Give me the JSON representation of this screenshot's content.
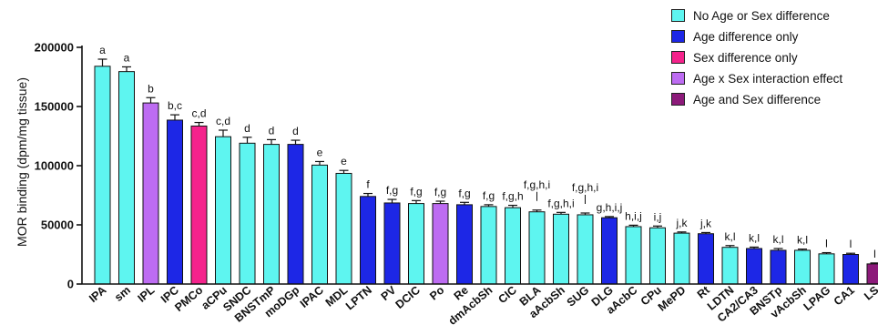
{
  "colors": {
    "none": "#5ef5f0",
    "age": "#1d27e6",
    "sex": "#f5238c",
    "interaction": "#bd6cf2",
    "both": "#8c1a7a"
  },
  "legend": [
    {
      "label": "No Age or Sex difference",
      "group": "none"
    },
    {
      "label": "Age difference only",
      "group": "age"
    },
    {
      "label": "Sex difference only",
      "group": "sex"
    },
    {
      "label": "Age x Sex interaction effect",
      "group": "interaction"
    },
    {
      "label": "Age and Sex difference",
      "group": "both"
    }
  ],
  "chart_data": {
    "type": "bar",
    "ylabel": "MOR binding (dpm/mg tissue)",
    "xlabel": "",
    "ylim": [
      0,
      200000
    ],
    "yticks": [
      0,
      50000,
      100000,
      150000,
      200000
    ],
    "ytick_labels": [
      "0",
      "50000",
      "100000",
      "150000",
      "200000"
    ],
    "grid": false,
    "legend_position": "top-right",
    "categories": [
      "IPA",
      "sm",
      "IPL",
      "IPC",
      "PMCo",
      "aCPu",
      "SNDC",
      "BNSTmP",
      "moDGp",
      "IPAC",
      "MDL",
      "LPTN",
      "PV",
      "DCIC",
      "Po",
      "Re",
      "dmAcbSh",
      "CIC",
      "BLA",
      "aAcbSh",
      "SUG",
      "DLG",
      "aAcbC",
      "CPu",
      "MePD",
      "Rt",
      "LDTN",
      "CA2/CA3",
      "BNSTp",
      "vAcbSh",
      "LPAG",
      "CA1",
      "LS"
    ],
    "values": [
      184000,
      179500,
      153000,
      138500,
      133500,
      124500,
      119000,
      118000,
      118000,
      100500,
      93500,
      74000,
      68500,
      68000,
      68000,
      67000,
      65500,
      64500,
      61000,
      59000,
      58500,
      56000,
      48500,
      47500,
      43000,
      42500,
      31000,
      30000,
      28500,
      28500,
      25500,
      25000,
      17000
    ],
    "errors": [
      6000,
      4000,
      4500,
      4500,
      3000,
      5500,
      5000,
      4000,
      3500,
      3000,
      2500,
      2500,
      3000,
      2500,
      2000,
      2000,
      1500,
      2000,
      1500,
      1500,
      1500,
      1000,
      1200,
      1500,
      1000,
      1000,
      1500,
      1200,
      1500,
      1000,
      1000,
      1000,
      800
    ],
    "groups": [
      "none",
      "none",
      "interaction",
      "age",
      "sex",
      "none",
      "none",
      "none",
      "age",
      "none",
      "none",
      "age",
      "age",
      "none",
      "interaction",
      "age",
      "none",
      "none",
      "none",
      "none",
      "none",
      "age",
      "none",
      "none",
      "none",
      "age",
      "none",
      "age",
      "age",
      "none",
      "none",
      "age",
      "both"
    ],
    "annotations": [
      "a",
      "a",
      "b",
      "b,c",
      "c,d",
      "c,d",
      "d",
      "d",
      "d",
      "e",
      "e",
      "f",
      "f,g",
      "f,g",
      "f,g",
      "f,g",
      "f,g",
      "f,g,h",
      "f,g,h,i",
      "f,g,h,i",
      "f,g,h,i",
      "g,h,i,j",
      "h,i,j",
      "i,j",
      "j,k",
      "j,k",
      "k,l",
      "k,l",
      "k,l",
      "k,l",
      "l",
      "l",
      "l"
    ],
    "annotation_rows": [
      0,
      0,
      0,
      0,
      0,
      0,
      0,
      0,
      0,
      0,
      0,
      0,
      0,
      0,
      0,
      0,
      0,
      0,
      1,
      0,
      1,
      0,
      0,
      0,
      0,
      0,
      0,
      0,
      0,
      0,
      0,
      0,
      0
    ]
  }
}
